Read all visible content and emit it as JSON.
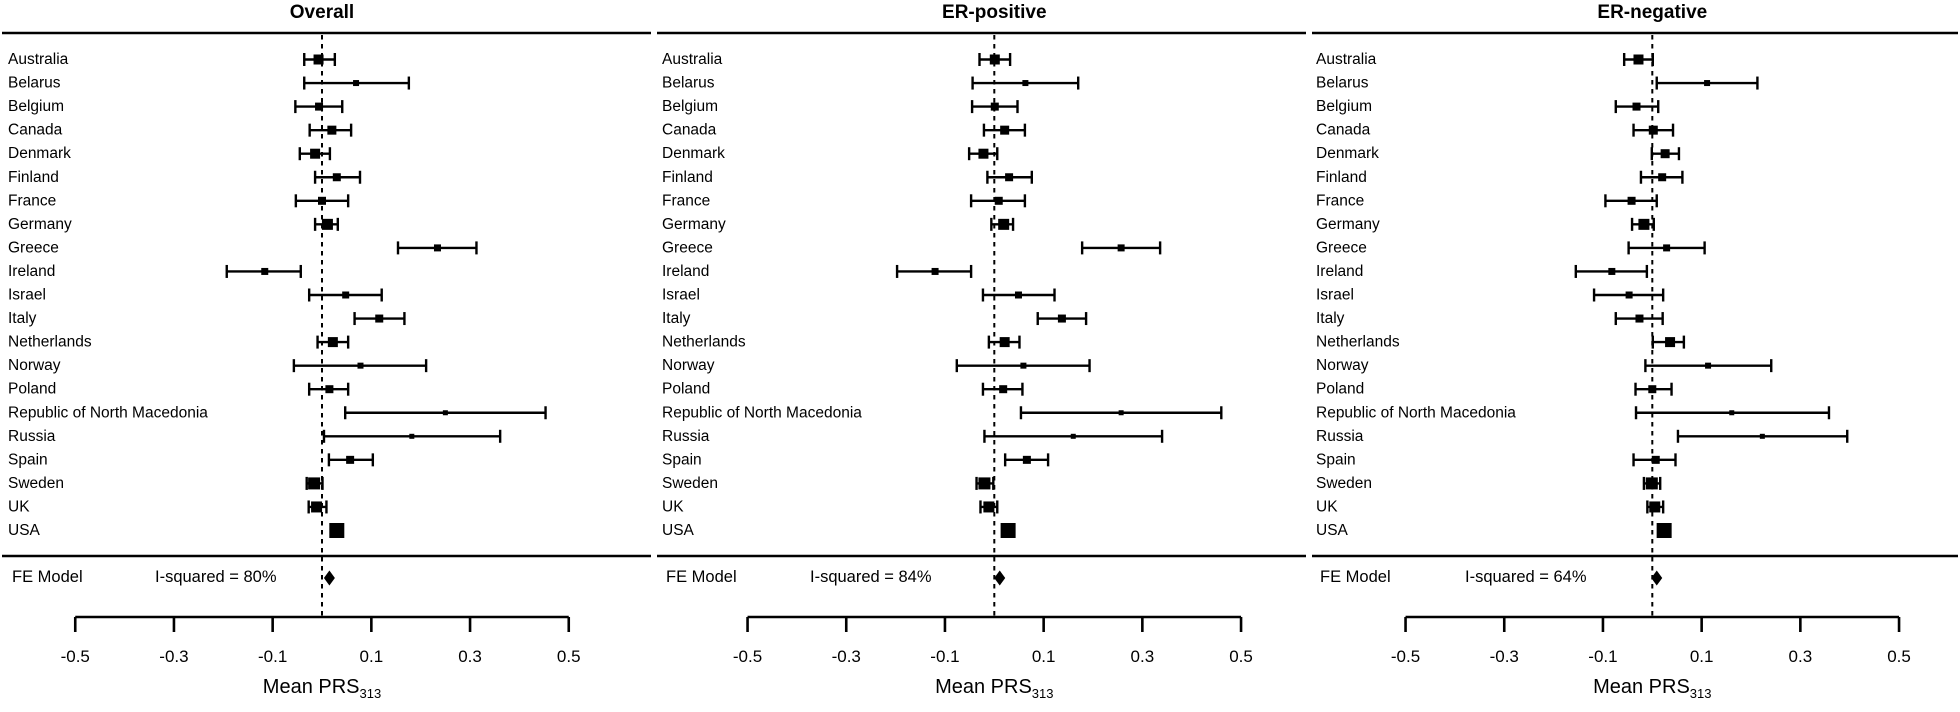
{
  "figure": {
    "fe_row_label": "FE Model",
    "x_axis_label_main": "Mean PRS",
    "x_axis_label_sub": "313",
    "ink_color": "#000000",
    "background_color": "#ffffff"
  },
  "chart_data": {
    "type": "forest",
    "xlabel": "Mean PRS313",
    "xlim": [
      -0.5,
      0.5
    ],
    "x_ticks": [
      -0.5,
      -0.3,
      -0.1,
      0.1,
      0.3,
      0.5
    ],
    "x_tick_labels": [
      "-0.5",
      "-0.3",
      "-0.1",
      "0.1",
      "0.3",
      "0.5"
    ],
    "zero_reference_line": 0,
    "categories": [
      "Australia",
      "Belarus",
      "Belgium",
      "Canada",
      "Denmark",
      "Finland",
      "France",
      "Germany",
      "Greece",
      "Ireland",
      "Israel",
      "Italy",
      "Netherlands",
      "Norway",
      "Poland",
      "Republic of North Macedonia",
      "Russia",
      "Spain",
      "Sweden",
      "UK",
      "USA"
    ],
    "panels": [
      {
        "title": "Overall",
        "fe_label": "FE Model",
        "i_squared_label": "I-squared = 80%",
        "fe_estimate": 0.015,
        "rows": [
          {
            "label": "Australia",
            "est": -0.007,
            "lo": -0.036,
            "hi": 0.026,
            "w": 10
          },
          {
            "label": "Belarus",
            "est": 0.069,
            "lo": -0.036,
            "hi": 0.176,
            "w": 6
          },
          {
            "label": "Belgium",
            "est": -0.006,
            "lo": -0.054,
            "hi": 0.041,
            "w": 8
          },
          {
            "label": "Canada",
            "est": 0.02,
            "lo": -0.025,
            "hi": 0.059,
            "w": 9
          },
          {
            "label": "Denmark",
            "est": -0.014,
            "lo": -0.045,
            "hi": 0.016,
            "w": 10
          },
          {
            "label": "Finland",
            "est": 0.03,
            "lo": -0.014,
            "hi": 0.077,
            "w": 8
          },
          {
            "label": "France",
            "est": 0.0,
            "lo": -0.053,
            "hi": 0.053,
            "w": 8
          },
          {
            "label": "Germany",
            "est": 0.011,
            "lo": -0.014,
            "hi": 0.032,
            "w": 11
          },
          {
            "label": "Greece",
            "est": 0.234,
            "lo": 0.154,
            "hi": 0.313,
            "w": 7
          },
          {
            "label": "Ireland",
            "est": -0.116,
            "lo": -0.193,
            "hi": -0.043,
            "w": 7
          },
          {
            "label": "Israel",
            "est": 0.048,
            "lo": -0.026,
            "hi": 0.121,
            "w": 7
          },
          {
            "label": "Italy",
            "est": 0.116,
            "lo": 0.066,
            "hi": 0.167,
            "w": 8
          },
          {
            "label": "Netherlands",
            "est": 0.022,
            "lo": -0.009,
            "hi": 0.053,
            "w": 10
          },
          {
            "label": "Norway",
            "est": 0.078,
            "lo": -0.057,
            "hi": 0.211,
            "w": 6
          },
          {
            "label": "Poland",
            "est": 0.015,
            "lo": -0.026,
            "hi": 0.053,
            "w": 8
          },
          {
            "label": "Republic of North Macedonia",
            "est": 0.25,
            "lo": 0.047,
            "hi": 0.453,
            "w": 5
          },
          {
            "label": "Russia",
            "est": 0.182,
            "lo": 0.004,
            "hi": 0.361,
            "w": 5
          },
          {
            "label": "Spain",
            "est": 0.057,
            "lo": 0.014,
            "hi": 0.103,
            "w": 8
          },
          {
            "label": "Sweden",
            "est": -0.016,
            "lo": -0.031,
            "hi": 0.001,
            "w": 12
          },
          {
            "label": "UK",
            "est": -0.011,
            "lo": -0.027,
            "hi": 0.009,
            "w": 11
          },
          {
            "label": "USA",
            "est": 0.03,
            "lo": 0.022,
            "hi": 0.038,
            "w": 15
          }
        ]
      },
      {
        "title": "ER-positive",
        "fe_label": "FE Model",
        "i_squared_label": "I-squared = 84%",
        "fe_estimate": 0.011,
        "rows": [
          {
            "label": "Australia",
            "est": 0.001,
            "lo": -0.03,
            "hi": 0.032,
            "w": 10
          },
          {
            "label": "Belarus",
            "est": 0.063,
            "lo": -0.044,
            "hi": 0.17,
            "w": 6
          },
          {
            "label": "Belgium",
            "est": 0.001,
            "lo": -0.045,
            "hi": 0.047,
            "w": 8
          },
          {
            "label": "Canada",
            "est": 0.021,
            "lo": -0.021,
            "hi": 0.062,
            "w": 9
          },
          {
            "label": "Denmark",
            "est": -0.022,
            "lo": -0.051,
            "hi": 0.006,
            "w": 10
          },
          {
            "label": "Finland",
            "est": 0.03,
            "lo": -0.014,
            "hi": 0.076,
            "w": 8
          },
          {
            "label": "France",
            "est": 0.009,
            "lo": -0.047,
            "hi": 0.062,
            "w": 8
          },
          {
            "label": "Germany",
            "est": 0.019,
            "lo": -0.006,
            "hi": 0.038,
            "w": 11
          },
          {
            "label": "Greece",
            "est": 0.257,
            "lo": 0.178,
            "hi": 0.336,
            "w": 7
          },
          {
            "label": "Ireland",
            "est": -0.12,
            "lo": -0.197,
            "hi": -0.047,
            "w": 7
          },
          {
            "label": "Israel",
            "est": 0.049,
            "lo": -0.023,
            "hi": 0.122,
            "w": 7
          },
          {
            "label": "Italy",
            "est": 0.137,
            "lo": 0.088,
            "hi": 0.186,
            "w": 8
          },
          {
            "label": "Netherlands",
            "est": 0.021,
            "lo": -0.011,
            "hi": 0.051,
            "w": 10
          },
          {
            "label": "Norway",
            "est": 0.059,
            "lo": -0.076,
            "hi": 0.193,
            "w": 6
          },
          {
            "label": "Poland",
            "est": 0.018,
            "lo": -0.023,
            "hi": 0.057,
            "w": 8
          },
          {
            "label": "Republic of North Macedonia",
            "est": 0.257,
            "lo": 0.054,
            "hi": 0.46,
            "w": 5
          },
          {
            "label": "Russia",
            "est": 0.16,
            "lo": -0.02,
            "hi": 0.34,
            "w": 5
          },
          {
            "label": "Spain",
            "est": 0.066,
            "lo": 0.022,
            "hi": 0.109,
            "w": 8
          },
          {
            "label": "Sweden",
            "est": -0.02,
            "lo": -0.036,
            "hi": -0.002,
            "w": 12
          },
          {
            "label": "UK",
            "est": -0.011,
            "lo": -0.028,
            "hi": 0.006,
            "w": 11
          },
          {
            "label": "USA",
            "est": 0.028,
            "lo": 0.02,
            "hi": 0.036,
            "w": 15
          }
        ]
      },
      {
        "title": "ER-negative",
        "fe_label": "FE Model",
        "i_squared_label": "I-squared = 64%",
        "fe_estimate": 0.009,
        "rows": [
          {
            "label": "Australia",
            "est": -0.028,
            "lo": -0.057,
            "hi": 0.001,
            "w": 10
          },
          {
            "label": "Belarus",
            "est": 0.111,
            "lo": 0.009,
            "hi": 0.213,
            "w": 6
          },
          {
            "label": "Belgium",
            "est": -0.032,
            "lo": -0.074,
            "hi": 0.012,
            "w": 8
          },
          {
            "label": "Canada",
            "est": 0.002,
            "lo": -0.038,
            "hi": 0.042,
            "w": 9
          },
          {
            "label": "Denmark",
            "est": 0.026,
            "lo": -0.001,
            "hi": 0.054,
            "w": 9
          },
          {
            "label": "Finland",
            "est": 0.02,
            "lo": -0.023,
            "hi": 0.061,
            "w": 8
          },
          {
            "label": "France",
            "est": -0.042,
            "lo": -0.095,
            "hi": 0.009,
            "w": 8
          },
          {
            "label": "Germany",
            "est": -0.017,
            "lo": -0.041,
            "hi": 0.003,
            "w": 11
          },
          {
            "label": "Greece",
            "est": 0.029,
            "lo": -0.048,
            "hi": 0.106,
            "w": 7
          },
          {
            "label": "Ireland",
            "est": -0.082,
            "lo": -0.155,
            "hi": -0.011,
            "w": 7
          },
          {
            "label": "Israel",
            "est": -0.047,
            "lo": -0.118,
            "hi": 0.022,
            "w": 7
          },
          {
            "label": "Italy",
            "est": -0.026,
            "lo": -0.074,
            "hi": 0.021,
            "w": 8
          },
          {
            "label": "Netherlands",
            "est": 0.036,
            "lo": 0.001,
            "hi": 0.064,
            "w": 10
          },
          {
            "label": "Norway",
            "est": 0.113,
            "lo": -0.014,
            "hi": 0.241,
            "w": 6
          },
          {
            "label": "Poland",
            "est": 0.0,
            "lo": -0.034,
            "hi": 0.039,
            "w": 8
          },
          {
            "label": "Republic of North Macedonia",
            "est": 0.161,
            "lo": -0.033,
            "hi": 0.358,
            "w": 5
          },
          {
            "label": "Russia",
            "est": 0.223,
            "lo": 0.052,
            "hi": 0.395,
            "w": 5
          },
          {
            "label": "Spain",
            "est": 0.007,
            "lo": -0.038,
            "hi": 0.047,
            "w": 8
          },
          {
            "label": "Sweden",
            "est": -0.001,
            "lo": -0.017,
            "hi": 0.016,
            "w": 12
          },
          {
            "label": "UK",
            "est": 0.005,
            "lo": -0.01,
            "hi": 0.022,
            "w": 11
          },
          {
            "label": "USA",
            "est": 0.024,
            "lo": 0.016,
            "hi": 0.032,
            "w": 15
          }
        ]
      }
    ]
  }
}
